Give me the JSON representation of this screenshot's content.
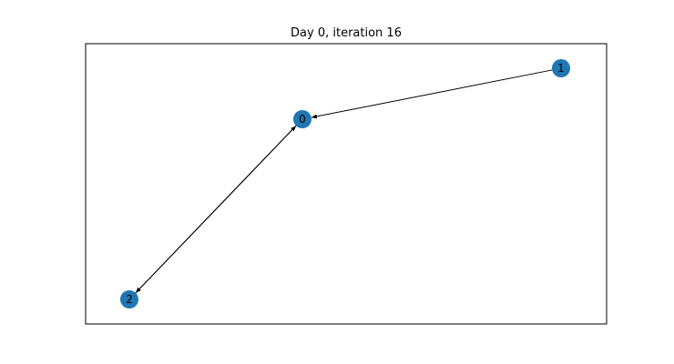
{
  "title": "Day 0, iteration 16",
  "style": {
    "node_color": "#1f77b4",
    "edge_color": "#000000",
    "label_color": "#000000",
    "frame_color": "#000000"
  },
  "nodes": [
    {
      "id": "0",
      "label": "0"
    },
    {
      "id": "1",
      "label": "1"
    },
    {
      "id": "2",
      "label": "2"
    }
  ],
  "edges": [
    {
      "source": "1",
      "target": "0",
      "directed": true
    },
    {
      "source": "2",
      "target": "0",
      "directed": true
    },
    {
      "source": "0",
      "target": "2",
      "directed": true
    }
  ]
}
